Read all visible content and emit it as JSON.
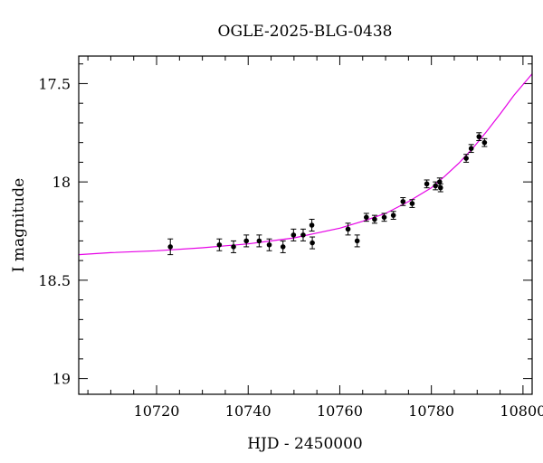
{
  "chart_data": {
    "type": "scatter",
    "title": "OGLE-2025-BLG-0438",
    "xlabel": "HJD - 2450000",
    "ylabel": "I magnitude",
    "xlim": [
      10703,
      10802
    ],
    "ylim": [
      19.08,
      17.36
    ],
    "y_inverted": true,
    "x_ticks": [
      10720,
      10740,
      10760,
      10780,
      10800
    ],
    "x_tick_labels": [
      "10720",
      "10740",
      "10760",
      "10780",
      "10800"
    ],
    "y_ticks": [
      17.5,
      18,
      18.5,
      19
    ],
    "y_tick_labels": [
      "17.5",
      "18",
      "18.5",
      "19"
    ],
    "grid": false,
    "colors": {
      "points": "#000000",
      "model": "#e600e6"
    },
    "points": [
      {
        "x": 10723.0,
        "y": 18.33,
        "err": 0.04
      },
      {
        "x": 10733.7,
        "y": 18.32,
        "err": 0.03
      },
      {
        "x": 10736.8,
        "y": 18.33,
        "err": 0.03
      },
      {
        "x": 10739.6,
        "y": 18.3,
        "err": 0.03
      },
      {
        "x": 10742.4,
        "y": 18.3,
        "err": 0.03
      },
      {
        "x": 10744.6,
        "y": 18.32,
        "err": 0.03
      },
      {
        "x": 10747.6,
        "y": 18.33,
        "err": 0.03
      },
      {
        "x": 10749.9,
        "y": 18.27,
        "err": 0.03
      },
      {
        "x": 10752.0,
        "y": 18.27,
        "err": 0.03
      },
      {
        "x": 10753.9,
        "y": 18.22,
        "err": 0.03
      },
      {
        "x": 10754.0,
        "y": 18.31,
        "err": 0.03
      },
      {
        "x": 10761.8,
        "y": 18.24,
        "err": 0.03
      },
      {
        "x": 10763.8,
        "y": 18.3,
        "err": 0.03
      },
      {
        "x": 10765.8,
        "y": 18.18,
        "err": 0.02
      },
      {
        "x": 10767.6,
        "y": 18.19,
        "err": 0.02
      },
      {
        "x": 10769.7,
        "y": 18.18,
        "err": 0.02
      },
      {
        "x": 10771.7,
        "y": 18.17,
        "err": 0.02
      },
      {
        "x": 10773.8,
        "y": 18.1,
        "err": 0.02
      },
      {
        "x": 10775.8,
        "y": 18.11,
        "err": 0.02
      },
      {
        "x": 10779.0,
        "y": 18.01,
        "err": 0.02
      },
      {
        "x": 10780.9,
        "y": 18.02,
        "err": 0.02
      },
      {
        "x": 10781.8,
        "y": 18.0,
        "err": 0.02
      },
      {
        "x": 10782.0,
        "y": 18.03,
        "err": 0.02
      },
      {
        "x": 10787.6,
        "y": 17.88,
        "err": 0.02
      },
      {
        "x": 10788.7,
        "y": 17.83,
        "err": 0.02
      },
      {
        "x": 10790.4,
        "y": 17.77,
        "err": 0.02
      },
      {
        "x": 10791.6,
        "y": 17.8,
        "err": 0.02
      }
    ],
    "model_curve": {
      "x": [
        10703,
        10710,
        10720,
        10730,
        10740,
        10745,
        10750,
        10755,
        10760,
        10765,
        10770,
        10775,
        10780,
        10783,
        10786,
        10789,
        10792,
        10795,
        10798,
        10802
      ],
      "y": [
        18.37,
        18.36,
        18.35,
        18.335,
        18.315,
        18.3,
        18.285,
        18.26,
        18.235,
        18.2,
        18.16,
        18.1,
        18.03,
        17.97,
        17.905,
        17.83,
        17.745,
        17.655,
        17.56,
        17.45
      ]
    }
  }
}
